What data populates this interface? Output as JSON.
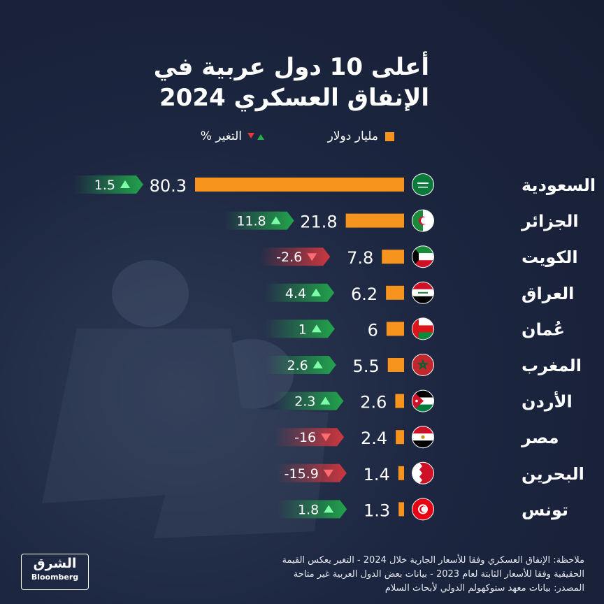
{
  "title_line1": "أعلى 10 دول عربية في",
  "title_line2": "الإنفاق العسكري 2024",
  "legend": {
    "spending": "مليار دولار",
    "change": "التغير %"
  },
  "colors": {
    "bar": "#f7941d",
    "up": "#22b14c",
    "down": "#e0393e"
  },
  "chart_data": {
    "type": "bar",
    "orientation": "horizontal",
    "categories": [
      "السعودية",
      "الجزائر",
      "الكويت",
      "العراق",
      "عُمان",
      "المغرب",
      "الأردن",
      "مصر",
      "البحرين",
      "تونس"
    ],
    "series": [
      {
        "name": "مليار دولار",
        "values": [
          80.3,
          21.8,
          7.8,
          6.2,
          6,
          5.5,
          2.6,
          2.4,
          1.4,
          1.3
        ]
      },
      {
        "name": "التغير %",
        "values": [
          1.5,
          11.8,
          -2.6,
          4.4,
          1,
          2.6,
          2.3,
          -16,
          -15.9,
          1.8
        ]
      }
    ],
    "value_labels": [
      "80.3",
      "21.8",
      "7.8",
      "6.2",
      "6",
      "5.5",
      "2.6",
      "2.4",
      "1.4",
      "1.3"
    ],
    "change_labels": [
      "1.5",
      "11.8",
      "-2.6",
      "4.4",
      "1",
      "2.6",
      "2.3",
      "-16",
      "-15.9",
      "1.8"
    ],
    "flags": [
      "saudi-arabia-flag",
      "algeria-flag",
      "kuwait-flag",
      "iraq-flag",
      "oman-flag",
      "morocco-flag",
      "jordan-flag",
      "egypt-flag",
      "bahrain-flag",
      "tunisia-flag"
    ]
  },
  "note_line1": "ملاحظة: الإنفاق العسكري وفقا للأسعار الجارية خلال 2024 - التغير يعكس القيمة",
  "note_line2": "الحقيقية وفقا للأسعار الثابتة لعام 2023 - بيانات بعض الدول العربية غير متاحة",
  "source_line": "المصدر: بيانات معهد ستوكهولم الدولي لأبحاث السلام",
  "logo": {
    "arabic": "الشرق",
    "sub": "Bloomberg"
  }
}
